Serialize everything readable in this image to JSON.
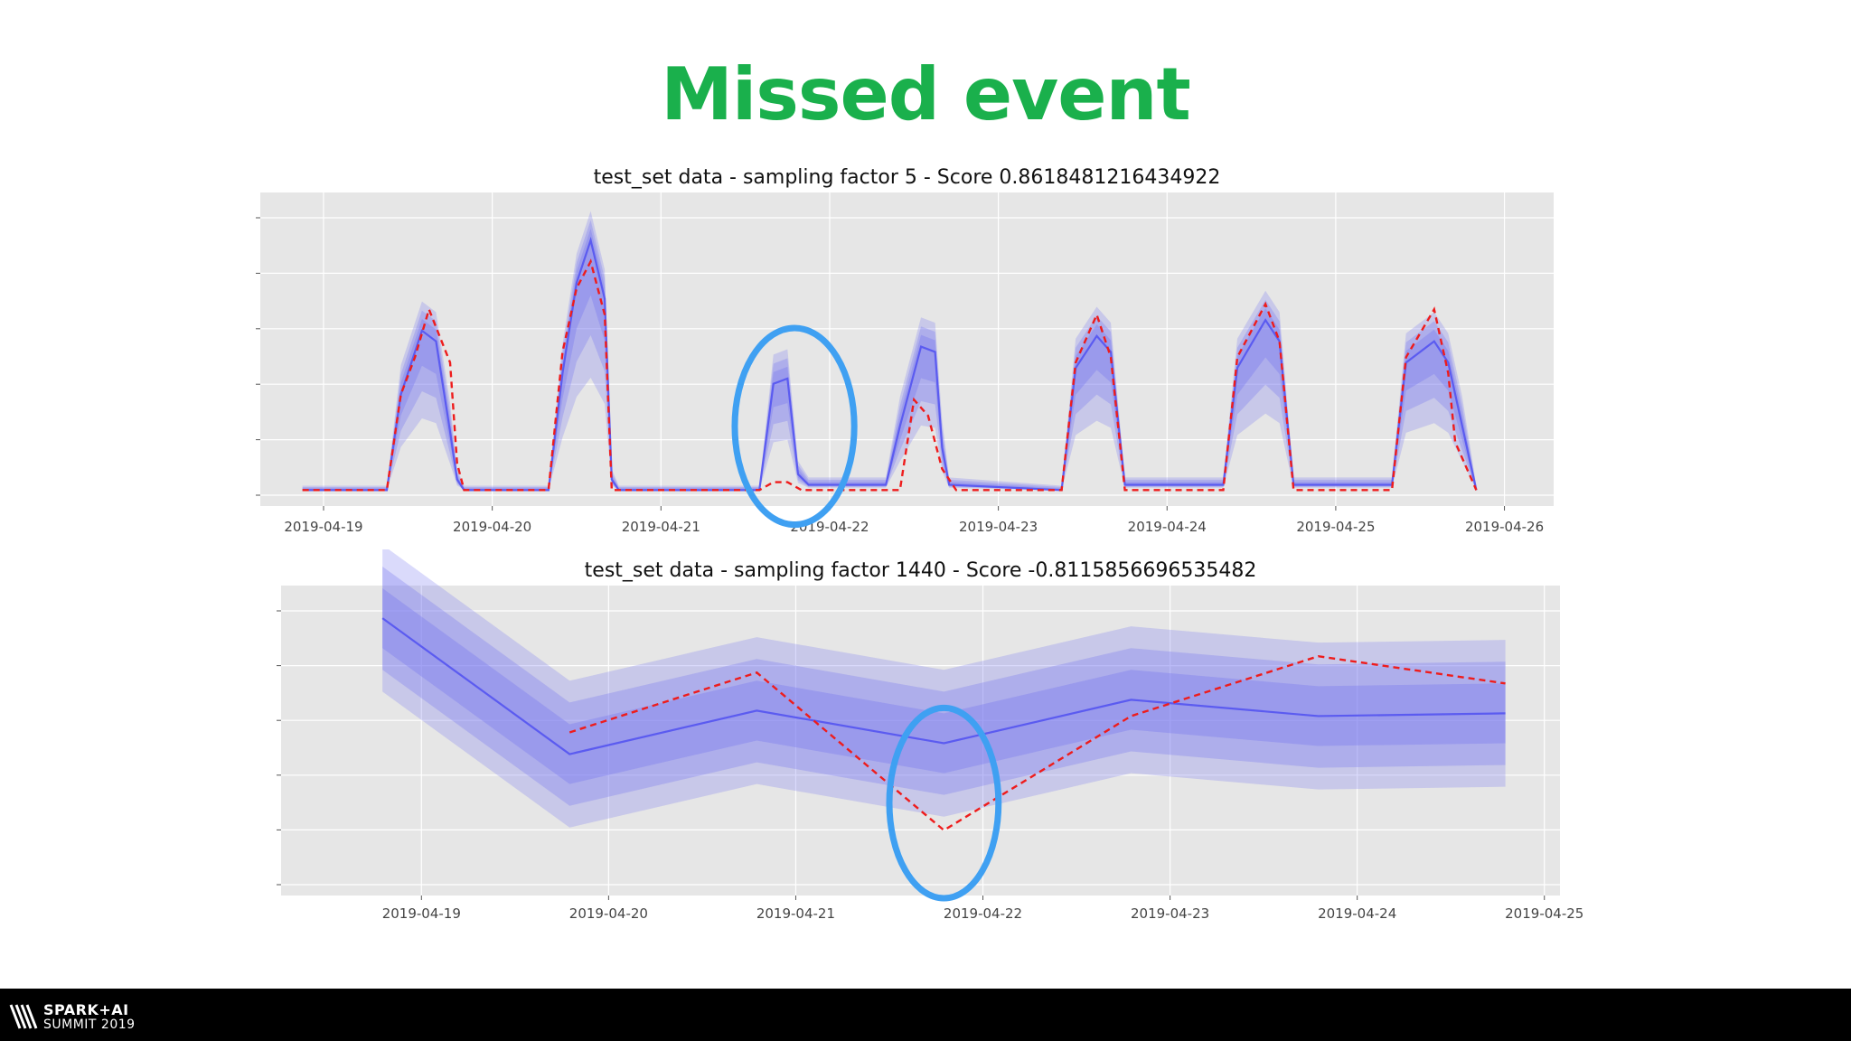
{
  "slide": {
    "title": "Missed event"
  },
  "footer": {
    "logo_line1": "SPARK+AI",
    "logo_line2": "SUMMIT 2019"
  },
  "colors": {
    "title": "#1ab04c",
    "prediction": "#5b5bf0",
    "band": "#7a7af0",
    "actual": "#ee1c1c",
    "highlight": "#3fa0f2",
    "plot_bg": "#e6e6e6"
  },
  "chart_data": [
    {
      "type": "line",
      "title": "test_set data - sampling factor 5 - Score 0.8618481216434922",
      "xlabel": "",
      "ylabel": "",
      "x_ticks": [
        "2019-04-19",
        "2019-04-20",
        "2019-04-21",
        "2019-04-22",
        "2019-04-23",
        "2019-04-24",
        "2019-04-25",
        "2019-04-26"
      ],
      "xlim": [
        "2019-04-18 15:00",
        "2019-04-26 07:00"
      ],
      "ylim": [
        -0.3,
        5.6
      ],
      "grid": true,
      "series": [
        {
          "role": "actual",
          "style": "dashed",
          "points": [
            [
              "2019-04-18 21:00",
              0
            ],
            [
              "2019-04-19 09:00",
              0
            ],
            [
              "2019-04-19 11:00",
              1.8
            ],
            [
              "2019-04-19 13:00",
              2.5
            ],
            [
              "2019-04-19 15:00",
              3.4
            ],
            [
              "2019-04-19 18:00",
              2.4
            ],
            [
              "2019-04-19 19:00",
              0.5
            ],
            [
              "2019-04-19 20:00",
              0
            ],
            [
              "2019-04-20 08:00",
              0
            ],
            [
              "2019-04-20 10:00",
              2.6
            ],
            [
              "2019-04-20 12:00",
              3.8
            ],
            [
              "2019-04-20 14:00",
              4.3
            ],
            [
              "2019-04-20 16:00",
              3.3
            ],
            [
              "2019-04-20 17:00",
              0
            ],
            [
              "2019-04-21 14:00",
              0
            ],
            [
              "2019-04-21 16:00",
              0.15
            ],
            [
              "2019-04-21 18:00",
              0.15
            ],
            [
              "2019-04-21 20:00",
              0
            ],
            [
              "2019-04-22 10:00",
              0
            ],
            [
              "2019-04-22 12:00",
              1.7
            ],
            [
              "2019-04-22 14:00",
              1.4
            ],
            [
              "2019-04-22 16:00",
              0.4
            ],
            [
              "2019-04-22 18:00",
              0
            ],
            [
              "2019-04-23 09:00",
              0
            ],
            [
              "2019-04-23 11:00",
              2.4
            ],
            [
              "2019-04-23 14:00",
              3.3
            ],
            [
              "2019-04-23 16:00",
              2.5
            ],
            [
              "2019-04-23 18:00",
              0
            ],
            [
              "2019-04-24 08:00",
              0
            ],
            [
              "2019-04-24 10:00",
              2.5
            ],
            [
              "2019-04-24 14:00",
              3.5
            ],
            [
              "2019-04-24 16:00",
              2.8
            ],
            [
              "2019-04-24 18:00",
              0
            ],
            [
              "2019-04-25 08:00",
              0
            ],
            [
              "2019-04-25 10:00",
              2.5
            ],
            [
              "2019-04-25 14:00",
              3.4
            ],
            [
              "2019-04-25 16:00",
              2.2
            ],
            [
              "2019-04-25 17:00",
              0.9
            ],
            [
              "2019-04-25 20:00",
              0
            ]
          ]
        },
        {
          "role": "prediction",
          "style": "solid",
          "points": [
            [
              "2019-04-18 21:00",
              0
            ],
            [
              "2019-04-19 09:00",
              0
            ],
            [
              "2019-04-19 11:00",
              1.8
            ],
            [
              "2019-04-19 14:00",
              3.0
            ],
            [
              "2019-04-19 16:00",
              2.8
            ],
            [
              "2019-04-19 18:00",
              1.1
            ],
            [
              "2019-04-19 19:00",
              0.2
            ],
            [
              "2019-04-19 20:00",
              0
            ],
            [
              "2019-04-20 08:00",
              0
            ],
            [
              "2019-04-20 10:00",
              2.2
            ],
            [
              "2019-04-20 12:00",
              3.9
            ],
            [
              "2019-04-20 14:00",
              4.7
            ],
            [
              "2019-04-20 16:00",
              3.6
            ],
            [
              "2019-04-20 17:00",
              0.2
            ],
            [
              "2019-04-20 18:00",
              0
            ],
            [
              "2019-04-21 14:00",
              0
            ],
            [
              "2019-04-21 16:00",
              2.0
            ],
            [
              "2019-04-21 18:00",
              2.1
            ],
            [
              "2019-04-21 19:30",
              0.3
            ],
            [
              "2019-04-21 21:00",
              0.1
            ],
            [
              "2019-04-22 08:00",
              0.1
            ],
            [
              "2019-04-22 10:00",
              1.2
            ],
            [
              "2019-04-22 13:00",
              2.7
            ],
            [
              "2019-04-22 15:00",
              2.6
            ],
            [
              "2019-04-22 16:00",
              0.8
            ],
            [
              "2019-04-22 17:00",
              0.1
            ],
            [
              "2019-04-23 09:00",
              0
            ],
            [
              "2019-04-23 11:00",
              2.3
            ],
            [
              "2019-04-23 14:00",
              2.9
            ],
            [
              "2019-04-23 16:00",
              2.6
            ],
            [
              "2019-04-23 18:00",
              0.1
            ],
            [
              "2019-04-24 08:00",
              0.1
            ],
            [
              "2019-04-24 10:00",
              2.3
            ],
            [
              "2019-04-24 14:00",
              3.2
            ],
            [
              "2019-04-24 16:00",
              2.8
            ],
            [
              "2019-04-24 18:00",
              0.1
            ],
            [
              "2019-04-25 08:00",
              0.1
            ],
            [
              "2019-04-25 10:00",
              2.4
            ],
            [
              "2019-04-25 14:00",
              2.8
            ],
            [
              "2019-04-25 16:00",
              2.4
            ],
            [
              "2019-04-25 18:00",
              1.2
            ],
            [
              "2019-04-25 20:00",
              0
            ]
          ]
        }
      ],
      "highlight": {
        "center": [
          "2019-04-21 19:00",
          1.2
        ],
        "rx_hours": 8.5,
        "ry": 1.85
      }
    },
    {
      "type": "line",
      "title": "test_set data - sampling factor 1440 - Score -0.8115856696535482",
      "xlabel": "",
      "ylabel": "",
      "x_ticks": [
        "2019-04-19",
        "2019-04-20",
        "2019-04-21",
        "2019-04-22",
        "2019-04-23",
        "2019-04-24",
        "2019-04-25"
      ],
      "xlim": [
        "2019-04-18 06:00",
        "2019-04-25 02:00"
      ],
      "ylim": [
        -0.9,
        4.8
      ],
      "grid": true,
      "series": [
        {
          "role": "actual",
          "style": "dashed",
          "points": [
            [
              "2019-04-19 19:00",
              2.1
            ],
            [
              "2019-04-20 19:00",
              3.2
            ],
            [
              "2019-04-21 19:00",
              0.3
            ],
            [
              "2019-04-22 19:00",
              2.4
            ],
            [
              "2019-04-23 19:00",
              3.5
            ],
            [
              "2019-04-24 19:00",
              3.0
            ]
          ]
        },
        {
          "role": "prediction",
          "style": "solid",
          "points": [
            [
              "2019-04-18 19:00",
              4.2
            ],
            [
              "2019-04-19 19:00",
              1.7
            ],
            [
              "2019-04-20 19:00",
              2.5
            ],
            [
              "2019-04-21 19:00",
              1.9
            ],
            [
              "2019-04-22 19:00",
              2.7
            ],
            [
              "2019-04-23 19:00",
              2.4
            ],
            [
              "2019-04-24 19:00",
              2.45
            ]
          ]
        }
      ],
      "highlight": {
        "center": [
          "2019-04-21 19:00",
          0.8
        ],
        "rx_hours": 7,
        "ry": 1.75
      }
    }
  ]
}
